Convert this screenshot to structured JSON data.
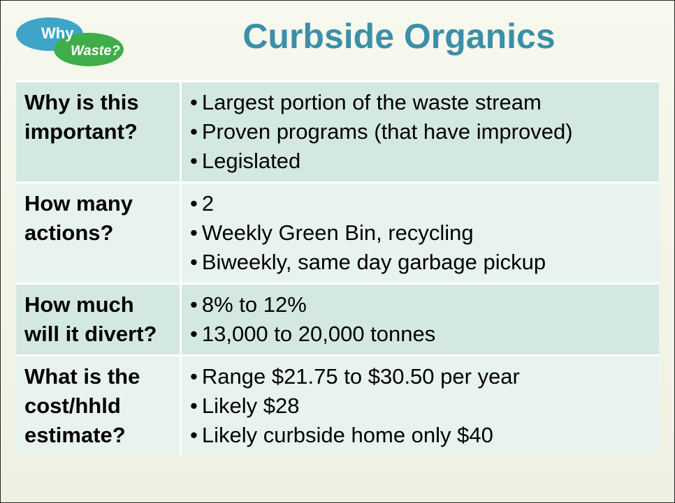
{
  "logo": {
    "line1": "Why",
    "line2": "Waste?"
  },
  "title": "Curbside Organics",
  "table": {
    "rows": [
      {
        "question": "Why is this important?",
        "answers": [
          "Largest portion of the waste stream",
          "Proven programs (that have improved)",
          "Legislated"
        ]
      },
      {
        "question": "How many actions?",
        "answers": [
          "2",
          "Weekly Green Bin, recycling",
          "Biweekly, same day garbage pickup"
        ]
      },
      {
        "question": "How much will it divert?",
        "answers": [
          "8% to 12%",
          "13,000 to 20,000 tonnes"
        ]
      },
      {
        "question": "What is the cost/hhld estimate?",
        "answers": [
          "Range $21.75 to $30.50 per year",
          "Likely $28",
          "Likely curbside home only $40"
        ]
      }
    ]
  }
}
